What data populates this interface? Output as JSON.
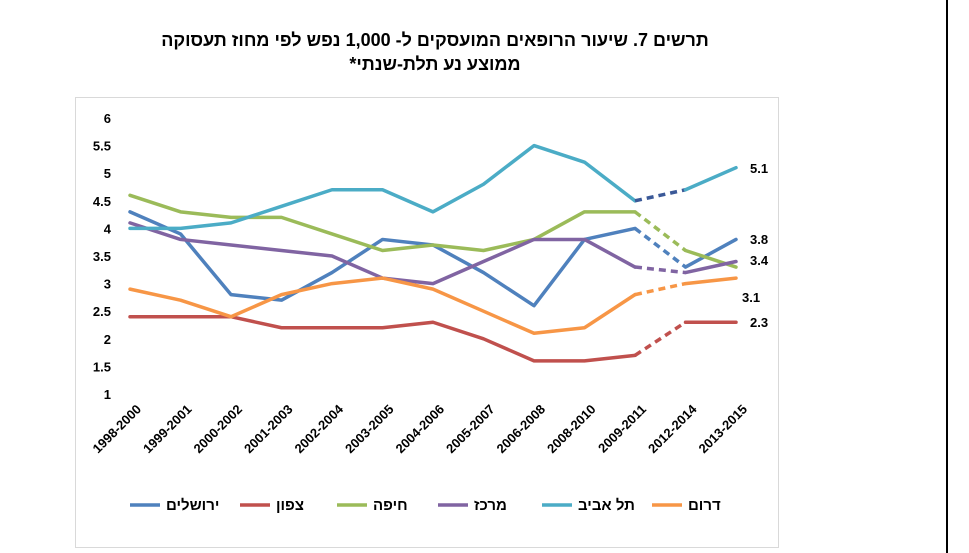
{
  "chart_data": {
    "type": "line",
    "title_line1": "תרשים 7. שיעור הרופאים המועסקים ל- 1,000 נפש לפי מחוז תעסוקה",
    "title_line2": "ממוצע נע תלת-שנתי*",
    "categories": [
      "1998-2000",
      "1999-2001",
      "2000-2002",
      "2001-2003",
      "2002-2004",
      "2003-2005",
      "2004-2006",
      "2005-2007",
      "2006-2008",
      "2008-2010",
      "2009-2011",
      "2012-2014",
      "2013-2015"
    ],
    "ylim": [
      1,
      6
    ],
    "yticks": [
      "1",
      "1.5",
      "2",
      "2.5",
      "3",
      "3.5",
      "4",
      "4.5",
      "5",
      "5.5",
      "6"
    ],
    "dashed_from_index": 10,
    "series": [
      {
        "name": "ירושלים",
        "color": "#4f81bd",
        "values": [
          4.3,
          3.9,
          2.8,
          2.7,
          3.2,
          3.8,
          3.7,
          3.2,
          2.6,
          3.8,
          4.0,
          3.3,
          3.8
        ],
        "end_label": "3.8"
      },
      {
        "name": "צפון",
        "color": "#c0504d",
        "values": [
          2.4,
          2.4,
          2.4,
          2.2,
          2.2,
          2.2,
          2.3,
          2.0,
          1.6,
          1.6,
          1.7,
          2.3,
          2.3
        ],
        "end_label": "2.3"
      },
      {
        "name": "חיפה",
        "color": "#9bbb59",
        "values": [
          4.6,
          4.3,
          4.2,
          4.2,
          3.9,
          3.6,
          3.7,
          3.6,
          3.8,
          4.3,
          4.3,
          3.6,
          3.3
        ],
        "end_label": ""
      },
      {
        "name": "מרכז",
        "color": "#8064a2",
        "values": [
          4.1,
          3.8,
          3.7,
          3.6,
          3.5,
          3.1,
          3.0,
          3.4,
          3.8,
          3.8,
          3.3,
          3.2,
          3.4
        ],
        "end_label": "3.4"
      },
      {
        "name": "תל אביב",
        "color": "#4bacc6",
        "values": [
          4.0,
          4.0,
          4.1,
          4.4,
          4.7,
          4.7,
          4.3,
          4.8,
          5.5,
          5.2,
          4.5,
          4.7,
          5.1
        ],
        "end_label": "5.1",
        "dashed_color": "#3b5998"
      },
      {
        "name": "דרום",
        "color": "#f79646",
        "values": [
          2.9,
          2.7,
          2.4,
          2.8,
          3.0,
          3.1,
          2.9,
          2.5,
          2.1,
          2.2,
          2.8,
          3.0,
          3.1
        ],
        "end_label": "3.1"
      }
    ]
  }
}
